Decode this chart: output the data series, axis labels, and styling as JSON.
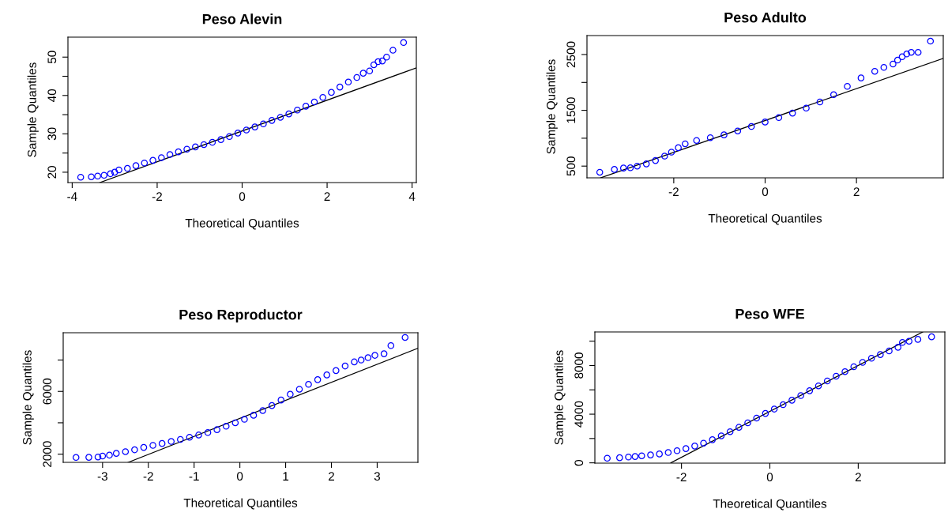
{
  "chart_data": [
    {
      "type": "scatter",
      "title": "Peso Alevin",
      "xlabel": "Theoretical Quantiles",
      "ylabel": "Sample Quantiles",
      "xlim": [
        -4.1,
        4.1
      ],
      "ylim": [
        17.3,
        55.2
      ],
      "xticks": [
        -4,
        -2,
        0,
        2,
        4
      ],
      "yticks": [
        20,
        {
          "value": 25,
          "label": null
        },
        30,
        {
          "value": 35,
          "label": null
        },
        40,
        {
          "value": 45,
          "label": null
        },
        50
      ],
      "grid": false,
      "marker": "circle",
      "series": [
        {
          "color": "#0000ff",
          "x": [
            -3.8,
            -3.55,
            -3.4,
            -3.25,
            -3.1,
            -3.0,
            -2.9,
            -2.7,
            -2.5,
            -2.3,
            -2.1,
            -1.9,
            -1.7,
            -1.5,
            -1.3,
            -1.1,
            -0.9,
            -0.7,
            -0.5,
            -0.3,
            -0.1,
            0.1,
            0.3,
            0.5,
            0.7,
            0.9,
            1.1,
            1.3,
            1.5,
            1.7,
            1.9,
            2.1,
            2.3,
            2.5,
            2.7,
            2.85,
            3.0,
            3.1,
            3.2,
            3.3,
            3.4,
            3.55,
            3.8
          ],
          "values": [
            18.7,
            18.8,
            19.0,
            19.2,
            19.6,
            20.0,
            20.6,
            21.0,
            21.7,
            22.4,
            23.1,
            23.8,
            24.6,
            25.3,
            26.0,
            26.6,
            27.2,
            27.8,
            28.5,
            29.3,
            30.2,
            31.0,
            31.8,
            32.6,
            33.5,
            34.3,
            35.2,
            36.2,
            37.2,
            38.3,
            39.5,
            40.8,
            42.2,
            43.5,
            44.7,
            45.8,
            46.4,
            48.0,
            48.8,
            49.0,
            50.0,
            51.8,
            53.8
          ]
        },
        {
          "type": "line",
          "color": "#000000",
          "marker": "none",
          "x": [
            -3.35,
            4.1
          ],
          "values": [
            17.3,
            47.2
          ]
        }
      ]
    },
    {
      "type": "scatter",
      "title": "Peso Adulto",
      "xlabel": "Theoretical Quantiles",
      "ylabel": "Sample Quantiles",
      "xlim": [
        -3.9,
        3.9
      ],
      "ylim": [
        290,
        2840
      ],
      "xticks": [
        -2,
        0,
        2
      ],
      "yticks": [
        500,
        {
          "value": 1000,
          "label": null
        },
        1500,
        {
          "value": 2000,
          "label": null
        },
        2500
      ],
      "grid": false,
      "marker": "circle",
      "series": [
        {
          "color": "#0000ff",
          "x": [
            -3.62,
            -3.3,
            -3.1,
            -2.95,
            -2.8,
            -2.6,
            -2.4,
            -2.2,
            -2.05,
            -1.9,
            -1.75,
            -1.5,
            -1.2,
            -0.9,
            -0.6,
            -0.3,
            0,
            0.3,
            0.6,
            0.9,
            1.2,
            1.5,
            1.8,
            2.1,
            2.4,
            2.6,
            2.8,
            2.9,
            3.0,
            3.1,
            3.2,
            3.35,
            3.62
          ],
          "values": [
            390,
            440,
            465,
            470,
            500,
            540,
            600,
            680,
            750,
            830,
            900,
            960,
            1010,
            1060,
            1130,
            1210,
            1290,
            1370,
            1450,
            1540,
            1650,
            1780,
            1930,
            2080,
            2200,
            2270,
            2330,
            2400,
            2460,
            2510,
            2540,
            2540,
            2740
          ]
        },
        {
          "type": "line",
          "color": "#000000",
          "marker": "none",
          "x": [
            -3.6,
            3.9
          ],
          "values": [
            290,
            2430
          ]
        }
      ]
    },
    {
      "type": "scatter",
      "title": "Peso Reproductor",
      "xlabel": "Theoretical Quantiles",
      "ylabel": "Sample Quantiles",
      "xlim": [
        -3.86,
        3.89
      ],
      "ylim": [
        1478,
        9740
      ],
      "xticks": [
        -3,
        -2,
        -1,
        0,
        1,
        2,
        3
      ],
      "yticks": [
        2000,
        {
          "value": 4000,
          "label": null
        },
        6000,
        {
          "value": 8000,
          "label": null
        }
      ],
      "grid": false,
      "marker": "circle",
      "series": [
        {
          "color": "#0000ff",
          "x": [
            -3.58,
            -3.3,
            -3.1,
            -3.0,
            -2.85,
            -2.7,
            -2.5,
            -2.3,
            -2.1,
            -1.9,
            -1.7,
            -1.5,
            -1.3,
            -1.1,
            -0.9,
            -0.7,
            -0.5,
            -0.3,
            -0.1,
            0.1,
            0.3,
            0.5,
            0.7,
            0.9,
            1.1,
            1.3,
            1.5,
            1.7,
            1.9,
            2.1,
            2.3,
            2.5,
            2.65,
            2.8,
            2.95,
            3.15,
            3.3,
            3.61
          ],
          "values": [
            1790,
            1800,
            1820,
            1880,
            1940,
            2050,
            2160,
            2280,
            2430,
            2560,
            2680,
            2810,
            2940,
            3080,
            3220,
            3380,
            3560,
            3780,
            4000,
            4220,
            4480,
            4780,
            5100,
            5450,
            5820,
            6140,
            6450,
            6750,
            7050,
            7330,
            7620,
            7880,
            8000,
            8150,
            8300,
            8400,
            8920,
            9440
          ]
        },
        {
          "type": "line",
          "color": "#000000",
          "marker": "none",
          "x": [
            -2.44,
            3.89
          ],
          "values": [
            1480,
            8750
          ]
        }
      ]
    },
    {
      "type": "scatter",
      "title": "Peso WFE",
      "xlabel": "Theoretical Quantiles",
      "ylabel": "Sample Quantiles",
      "xlim": [
        -3.96,
        3.96
      ],
      "ylim": [
        -25,
        10760
      ],
      "xticks": [
        -2,
        0,
        2
      ],
      "yticks": [
        0,
        {
          "value": 2000,
          "label": null
        },
        4000,
        {
          "value": 6000,
          "label": null
        },
        8000,
        {
          "value": 10000,
          "label": null
        }
      ],
      "grid": false,
      "marker": "circle",
      "series": [
        {
          "color": "#0000ff",
          "x": [
            -3.68,
            -3.4,
            -3.2,
            -3.05,
            -2.9,
            -2.7,
            -2.5,
            -2.3,
            -2.1,
            -1.9,
            -1.7,
            -1.5,
            -1.3,
            -1.1,
            -0.9,
            -0.7,
            -0.5,
            -0.3,
            -0.1,
            0.1,
            0.3,
            0.5,
            0.7,
            0.9,
            1.1,
            1.3,
            1.5,
            1.7,
            1.9,
            2.1,
            2.3,
            2.5,
            2.7,
            2.9,
            3.0,
            3.15,
            3.35,
            3.66
          ],
          "values": [
            380,
            420,
            480,
            520,
            580,
            650,
            730,
            850,
            1000,
            1170,
            1380,
            1620,
            1900,
            2220,
            2560,
            2920,
            3290,
            3680,
            4060,
            4420,
            4780,
            5150,
            5530,
            5930,
            6330,
            6730,
            7120,
            7500,
            7900,
            8260,
            8600,
            8900,
            9200,
            9500,
            9900,
            10000,
            10150,
            10360
          ]
        },
        {
          "type": "line",
          "color": "#000000",
          "marker": "none",
          "x": [
            -2.24,
            3.46
          ],
          "values": [
            0,
            10760
          ]
        }
      ]
    }
  ]
}
